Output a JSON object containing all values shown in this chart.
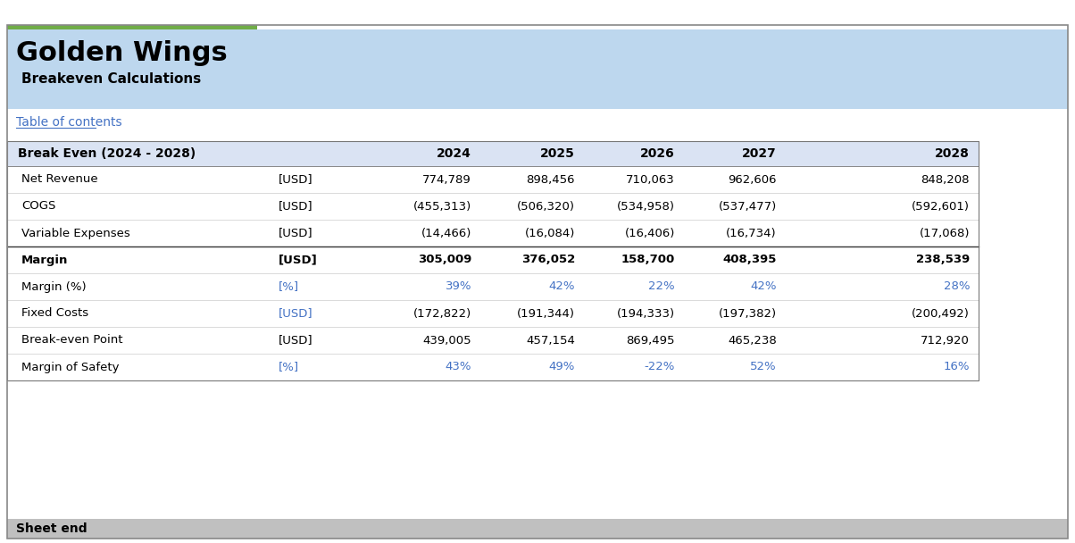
{
  "title": "Golden Wings",
  "subtitle": "Breakeven Calculations",
  "toc_text": "Table of contents",
  "header_bg": "#BDD7EE",
  "footer_bg": "#C0C0C0",
  "footer_text": "Sheet end",
  "blue_text": "#4472C4",
  "dark_text": "#000000",
  "col_header": "Break Even (2024 - 2028)",
  "year_labels": [
    "2024",
    "2025",
    "2026",
    "2027",
    "2028"
  ],
  "rows": [
    {
      "label": "Net Revenue",
      "unit": "[USD]",
      "values": [
        "774,789",
        "898,456",
        "710,063",
        "962,606",
        "848,208"
      ],
      "bold": false,
      "blue_unit": false,
      "blue_values": false,
      "top_border": true
    },
    {
      "label": "COGS",
      "unit": "[USD]",
      "values": [
        "(455,313)",
        "(506,320)",
        "(534,958)",
        "(537,477)",
        "(592,601)"
      ],
      "bold": false,
      "blue_unit": false,
      "blue_values": false,
      "top_border": false
    },
    {
      "label": "Variable Expenses",
      "unit": "[USD]",
      "values": [
        "(14,466)",
        "(16,084)",
        "(16,406)",
        "(16,734)",
        "(17,068)"
      ],
      "bold": false,
      "blue_unit": false,
      "blue_values": false,
      "top_border": false
    },
    {
      "label": "Margin",
      "unit": "[USD]",
      "values": [
        "305,009",
        "376,052",
        "158,700",
        "408,395",
        "238,539"
      ],
      "bold": true,
      "blue_unit": false,
      "blue_values": false,
      "top_border": true
    },
    {
      "label": "Margin (%)",
      "unit": "[%]",
      "values": [
        "39%",
        "42%",
        "22%",
        "42%",
        "28%"
      ],
      "bold": false,
      "blue_unit": true,
      "blue_values": true,
      "top_border": false
    },
    {
      "label": "Fixed Costs",
      "unit": "[USD]",
      "values": [
        "(172,822)",
        "(191,344)",
        "(194,333)",
        "(197,382)",
        "(200,492)"
      ],
      "bold": false,
      "blue_unit": true,
      "blue_values": false,
      "top_border": false
    },
    {
      "label": "Break-even Point",
      "unit": "[USD]",
      "values": [
        "439,005",
        "457,154",
        "869,495",
        "465,238",
        "712,920"
      ],
      "bold": false,
      "blue_unit": false,
      "blue_values": false,
      "top_border": false
    },
    {
      "label": "Margin of Safety",
      "unit": "[%]",
      "values": [
        "43%",
        "49%",
        "-22%",
        "52%",
        "16%"
      ],
      "bold": false,
      "blue_unit": true,
      "blue_values": true,
      "top_border": false
    }
  ]
}
